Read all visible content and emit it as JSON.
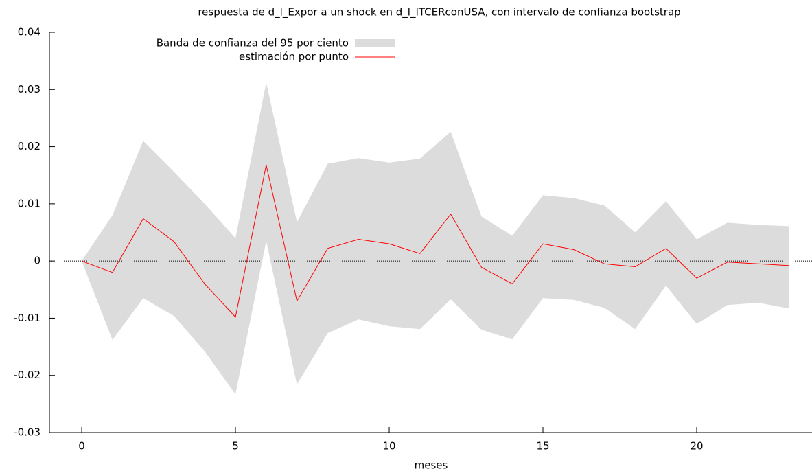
{
  "chart_data": {
    "type": "line",
    "title": "respuesta de d_l_Expor a un shock en d_l_ITCERconUSA, con intervalo de confianza bootstrap",
    "xlabel": "meses",
    "x": [
      0,
      1,
      2,
      3,
      4,
      5,
      6,
      7,
      8,
      9,
      10,
      11,
      12,
      13,
      14,
      15,
      16,
      17,
      18,
      19,
      20,
      21,
      22,
      23
    ],
    "series": [
      {
        "name": "Banda de confianza del 95 por ciento",
        "type": "band",
        "color": "#dcdcdc",
        "upper": [
          0,
          0.008,
          0.021,
          0.0156,
          0.01,
          0.004,
          0.0312,
          0.0068,
          0.017,
          0.018,
          0.0172,
          0.0179,
          0.0226,
          0.0078,
          0.0044,
          0.0115,
          0.011,
          0.0097,
          0.005,
          0.0105,
          0.0038,
          0.0067,
          0.0063,
          0.0061
        ],
        "lower": [
          0,
          -0.0138,
          -0.0065,
          -0.0096,
          -0.0158,
          -0.0233,
          0.0035,
          -0.0216,
          -0.0126,
          -0.0102,
          -0.0114,
          -0.0119,
          -0.0067,
          -0.012,
          -0.0137,
          -0.0065,
          -0.0068,
          -0.0082,
          -0.0119,
          -0.0043,
          -0.011,
          -0.0077,
          -0.0073,
          -0.0083
        ]
      },
      {
        "name": "estimación por punto",
        "type": "line",
        "color": "#ff0000",
        "values": [
          0,
          -0.002,
          0.0074,
          0.0034,
          -0.004,
          -0.0098,
          0.0168,
          -0.007,
          0.0022,
          0.0038,
          0.003,
          0.0013,
          0.0082,
          -0.0011,
          -0.004,
          0.003,
          0.002,
          -0.0005,
          -0.001,
          0.0022,
          -0.003,
          -0.0002,
          -0.0005,
          -0.0008
        ]
      }
    ],
    "xlim": [
      -1.05,
      23.75
    ],
    "ylim": [
      -0.03,
      0.04
    ],
    "xticks": [
      0,
      5,
      10,
      15,
      20
    ],
    "yticks": [
      -0.03,
      -0.02,
      -0.01,
      0,
      0.01,
      0.02,
      0.03,
      0.04
    ],
    "zero_line": true,
    "legend": "upper left"
  }
}
